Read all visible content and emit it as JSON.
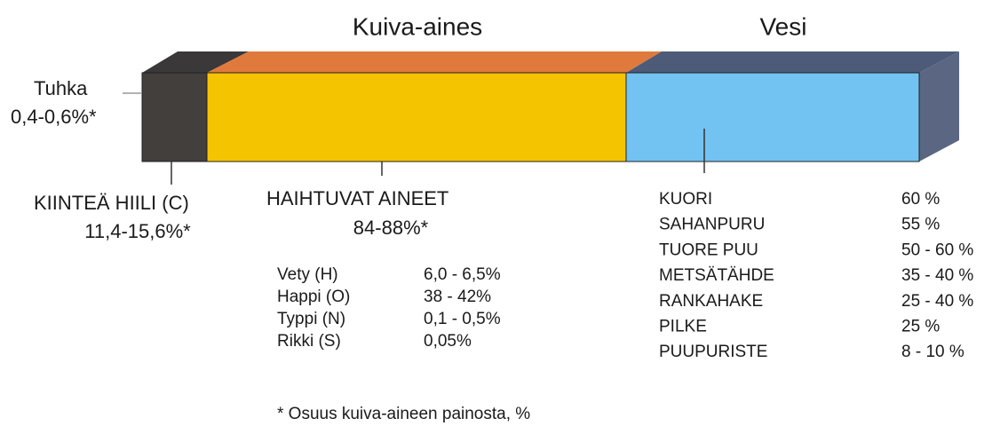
{
  "headers": {
    "dry_matter": "Kuiva-aines",
    "water": "Vesi"
  },
  "ash": {
    "label": "Tuhka",
    "value": "0,4-0,6%*"
  },
  "fixed_carbon": {
    "label": "KIINTEÄ HIILI (C)",
    "value": "11,4-15,6%*"
  },
  "volatiles": {
    "label": "HAIHTUVAT AINEET",
    "value": "84-88%*",
    "elements": [
      [
        "Vety (H)",
        "6,0 - 6,5%"
      ],
      [
        "Happi (O)",
        "38 - 42%"
      ],
      [
        "Typpi (N)",
        "0,1 - 0,5%"
      ],
      [
        "Rikki (S)",
        "0,05%"
      ]
    ]
  },
  "moisture": {
    "rows": [
      [
        "KUORI",
        "60 %"
      ],
      [
        "SAHANPURU",
        "55 %"
      ],
      [
        "TUORE PUU",
        "50 - 60 %"
      ],
      [
        "METSÄTÄHDE",
        "35 - 40 %"
      ],
      [
        "RANKAHAKE",
        "25 - 40 %"
      ],
      [
        "PILKE",
        "25 %"
      ],
      [
        "PUUPURISTE",
        "8 - 10 %"
      ]
    ]
  },
  "footnote": "* Osuus kuiva-aineen painosta, %"
}
